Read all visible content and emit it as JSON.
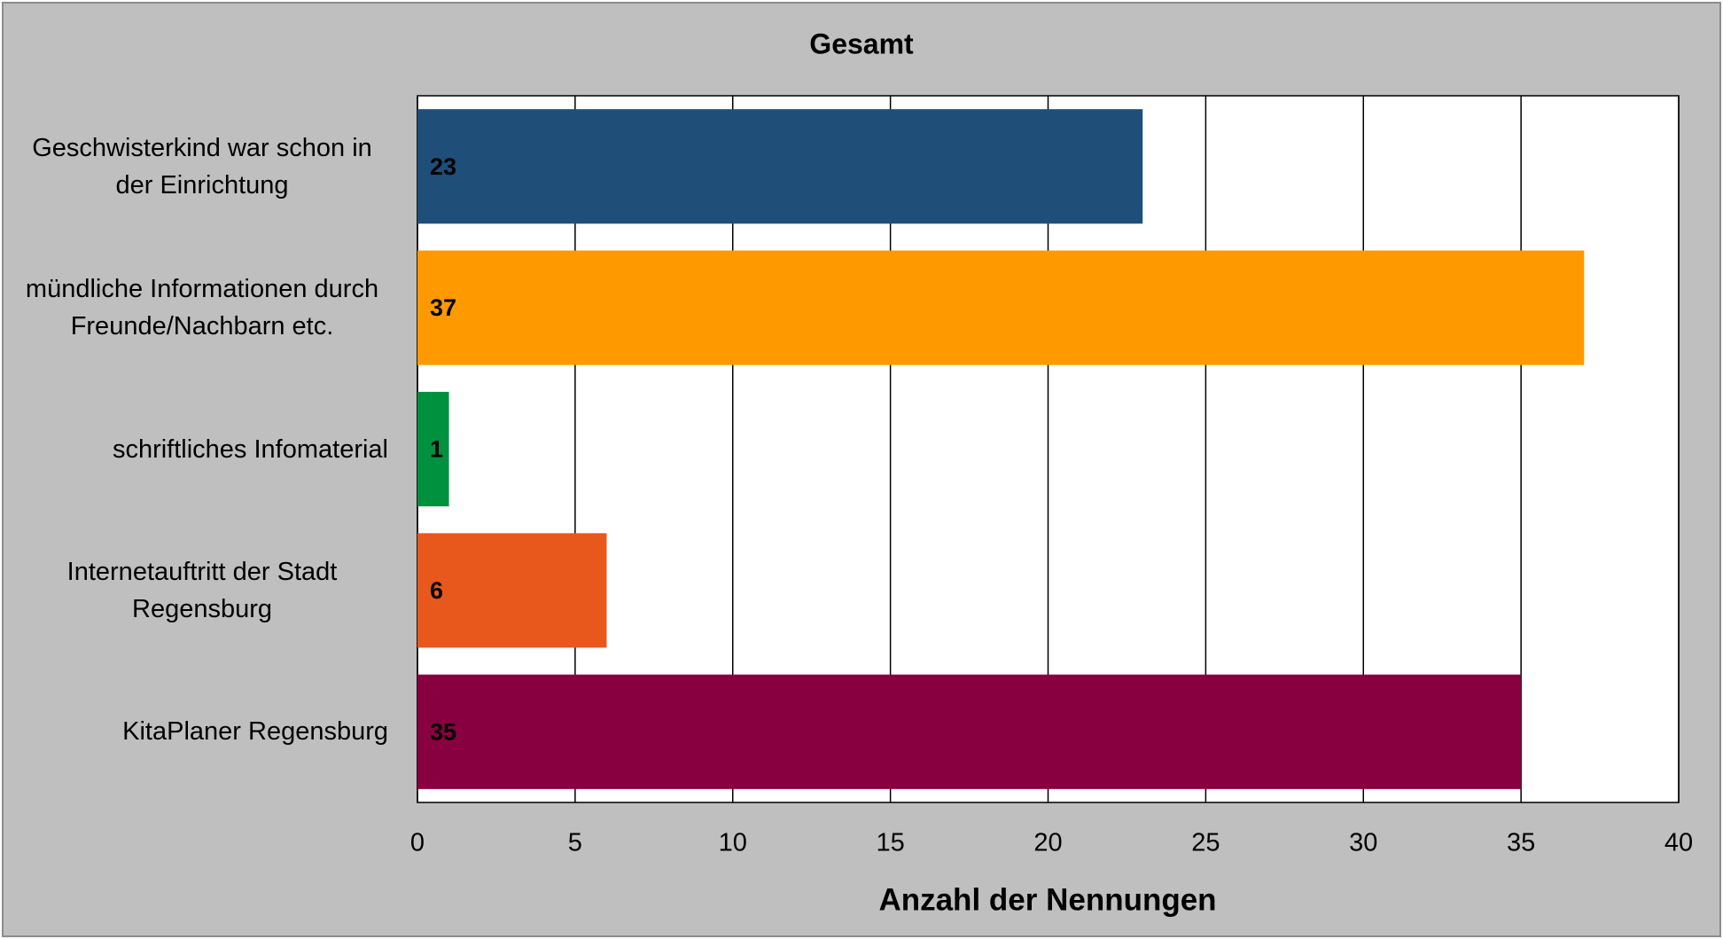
{
  "chart_data": {
    "type": "bar",
    "orientation": "horizontal",
    "title": "Gesamt",
    "x_label": "Anzahl der Nennungen",
    "categories": [
      "Geschwisterkind war schon in der Einrichtung",
      "mündliche Informationen durch Freunde/Nachbarn etc.",
      "schriftliches Infomaterial",
      "Internetauftritt der Stadt Regensburg",
      "KitaPlaner Regensburg"
    ],
    "values": [
      23,
      37,
      1,
      6,
      35
    ],
    "colors": [
      "#1f4e79",
      "#ff9900",
      "#00913f",
      "#e8581c",
      "#880040"
    ],
    "xlim": [
      0,
      40
    ],
    "xticks": [
      0,
      5,
      10,
      15,
      20,
      25,
      30,
      35,
      40
    ],
    "grid": true
  }
}
